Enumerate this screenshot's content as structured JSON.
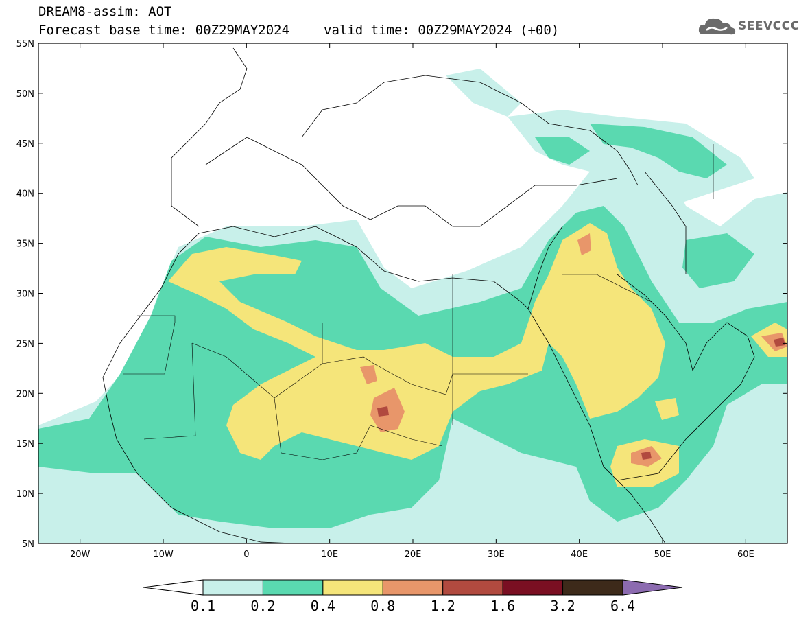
{
  "title": {
    "line1": "DREAM8-assim: AOT",
    "base_time": "Forecast base time: 00Z29MAY2024",
    "valid_time": "valid time: 00Z29MAY2024 (+00)"
  },
  "logo": {
    "text": "SEEVCCC",
    "icon": "cloud-icon"
  },
  "map": {
    "projection": "lat-lon",
    "lon_range": [
      -25,
      65
    ],
    "lat_range": [
      5,
      55
    ],
    "lat_labels": [
      "5N",
      "10N",
      "15N",
      "20N",
      "25N",
      "30N",
      "35N",
      "40N",
      "45N",
      "50N",
      "55N"
    ],
    "lon_labels": [
      "20W",
      "10W",
      "0",
      "10E",
      "20E",
      "30E",
      "40E",
      "50E",
      "60E"
    ],
    "variable": "Aerosol Optical Thickness"
  },
  "colorbar": {
    "levels": [
      "0.1",
      "0.2",
      "0.4",
      "0.8",
      "1.2",
      "1.6",
      "3.2",
      "6.4"
    ],
    "colors": [
      "#c8f0ea",
      "#5ad9b0",
      "#f5e57a",
      "#e8966a",
      "#b14a3f",
      "#7a0f22",
      "#3d2a1a",
      "#8c6bb0"
    ]
  }
}
